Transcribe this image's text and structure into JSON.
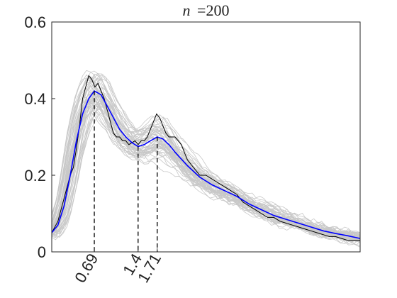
{
  "chart_data": {
    "type": "line",
    "title": "n =200",
    "title_parts": {
      "var": "n",
      "eq": "=200"
    },
    "xlabel": "",
    "ylabel": "",
    "xlim": [
      0,
      5.0
    ],
    "ylim": [
      0,
      0.6
    ],
    "x_tick_labels": [
      "0.69",
      "1.4",
      "1.71"
    ],
    "x_ticks": [
      0.69,
      1.4,
      1.71
    ],
    "y_tick_labels": [
      "0",
      "0.2",
      "0.4",
      "0.6"
    ],
    "y_ticks": [
      0,
      0.2,
      0.4,
      0.6
    ],
    "grid": false,
    "legend": "none",
    "colors": {
      "mean_curve": "#0000ff",
      "single_sample": "#000000",
      "replicates": "#c8c8c8",
      "axes": "#262626",
      "vlines": "#000000"
    },
    "series": [
      {
        "x": [
          0.0,
          0.1,
          0.2,
          0.3,
          0.4,
          0.5,
          0.6,
          0.69,
          0.8,
          0.9,
          1.0,
          1.1,
          1.2,
          1.3,
          1.4,
          1.5,
          1.6,
          1.71,
          1.8,
          1.9,
          2.0,
          2.2,
          2.4,
          2.6,
          2.8,
          3.0,
          3.2,
          3.4,
          3.6,
          3.8,
          4.0,
          4.2,
          4.4,
          4.6,
          4.8,
          5.0
        ],
        "values": [
          0.05,
          0.07,
          0.12,
          0.2,
          0.29,
          0.36,
          0.4,
          0.42,
          0.41,
          0.38,
          0.35,
          0.32,
          0.3,
          0.285,
          0.275,
          0.28,
          0.29,
          0.3,
          0.295,
          0.28,
          0.26,
          0.225,
          0.195,
          0.175,
          0.16,
          0.145,
          0.125,
          0.11,
          0.095,
          0.085,
          0.075,
          0.065,
          0.055,
          0.048,
          0.042,
          0.035
        ]
      },
      {
        "x": [
          0.0,
          0.1,
          0.2,
          0.25,
          0.3,
          0.35,
          0.4,
          0.45,
          0.5,
          0.55,
          0.6,
          0.65,
          0.7,
          0.75,
          0.8,
          0.85,
          0.9,
          0.95,
          1.0,
          1.05,
          1.1,
          1.15,
          1.2,
          1.25,
          1.3,
          1.35,
          1.4,
          1.45,
          1.5,
          1.55,
          1.6,
          1.65,
          1.7,
          1.75,
          1.8,
          1.85,
          1.9,
          1.95,
          2.0,
          2.1,
          2.2,
          2.3,
          2.4,
          2.5,
          2.6,
          2.7,
          2.8,
          2.9,
          3.0,
          3.1,
          3.2,
          3.3,
          3.4,
          3.5,
          3.6,
          3.7,
          3.8,
          3.9,
          4.0,
          4.1,
          4.2,
          4.3,
          4.4,
          4.5,
          4.6,
          4.7,
          4.8,
          4.9,
          5.0
        ],
        "values": [
          0.05,
          0.08,
          0.14,
          0.17,
          0.2,
          0.22,
          0.27,
          0.33,
          0.4,
          0.43,
          0.46,
          0.45,
          0.43,
          0.44,
          0.42,
          0.4,
          0.37,
          0.34,
          0.31,
          0.3,
          0.3,
          0.29,
          0.29,
          0.28,
          0.285,
          0.29,
          0.28,
          0.29,
          0.29,
          0.3,
          0.32,
          0.34,
          0.36,
          0.35,
          0.33,
          0.31,
          0.3,
          0.3,
          0.3,
          0.28,
          0.24,
          0.22,
          0.2,
          0.2,
          0.19,
          0.18,
          0.17,
          0.16,
          0.15,
          0.13,
          0.12,
          0.11,
          0.1,
          0.09,
          0.09,
          0.08,
          0.075,
          0.07,
          0.065,
          0.06,
          0.055,
          0.05,
          0.045,
          0.04,
          0.04,
          0.035,
          0.03,
          0.03,
          0.03
        ]
      }
    ],
    "annotations": [
      {
        "x": 0.69,
        "y": 0.42
      },
      {
        "x": 1.4,
        "y": 0.275
      },
      {
        "x": 1.71,
        "y": 0.3
      }
    ]
  }
}
